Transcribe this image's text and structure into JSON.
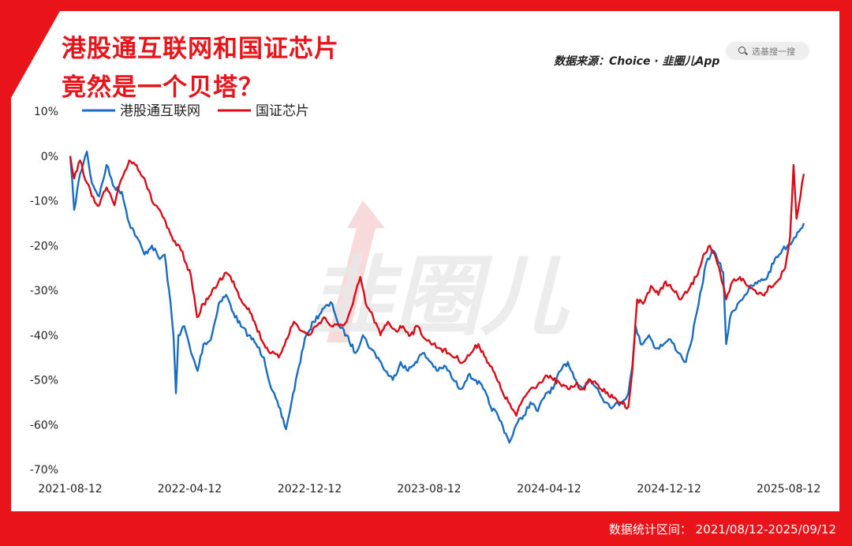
{
  "title_line1": "港股通互联网和国证芯片",
  "title_line2": "竟然是一个贝塔？",
  "source": "数据来源：Choice · 韭圈儿App",
  "search_placeholder": "选基搜一搜",
  "watermark": "韭圈儿",
  "footnote": "数据统计区间：  2021/08/12-2025/09/12",
  "colors": {
    "frame": "#e8141a",
    "series_blue": "#1a6cc1",
    "series_red": "#d80c18"
  },
  "chart_data": {
    "type": "line",
    "title": "港股通互联网和国证芯片竟然是一个贝塔？",
    "xlabel": "",
    "ylabel": "",
    "x_range": [
      "2021-08-12",
      "2025-09-12"
    ],
    "x_ticks": [
      "2021-08-12",
      "2022-04-12",
      "2022-12-12",
      "2023-08-12",
      "2024-04-12",
      "2024-12-12",
      "2025-08-12"
    ],
    "y_ticks": [
      "10%",
      "0%",
      "-10%",
      "-20%",
      "-30%",
      "-40%",
      "-50%",
      "-60%",
      "-70%"
    ],
    "ylim": [
      -70,
      10
    ],
    "grid": false,
    "legend_position": "top-left",
    "series": [
      {
        "name": "港股通互联网",
        "color": "#1a6cc1",
        "points": [
          [
            "2021-08-12",
            0
          ],
          [
            "2021-08-20",
            -12
          ],
          [
            "2021-09-01",
            -4
          ],
          [
            "2021-09-15",
            1
          ],
          [
            "2021-09-25",
            -6
          ],
          [
            "2021-10-10",
            -9
          ],
          [
            "2021-10-25",
            -2
          ],
          [
            "2021-11-10",
            -7
          ],
          [
            "2021-11-25",
            -8
          ],
          [
            "2021-12-10",
            -15
          ],
          [
            "2021-12-25",
            -18
          ],
          [
            "2022-01-10",
            -22
          ],
          [
            "2022-01-25",
            -20
          ],
          [
            "2022-02-10",
            -23
          ],
          [
            "2022-02-20",
            -22
          ],
          [
            "2022-03-01",
            -30
          ],
          [
            "2022-03-10",
            -40
          ],
          [
            "2022-03-15",
            -53
          ],
          [
            "2022-03-20",
            -40
          ],
          [
            "2022-04-01",
            -38
          ],
          [
            "2022-04-15",
            -44
          ],
          [
            "2022-04-28",
            -48
          ],
          [
            "2022-05-10",
            -42
          ],
          [
            "2022-05-25",
            -41
          ],
          [
            "2022-06-10",
            -33
          ],
          [
            "2022-06-25",
            -31
          ],
          [
            "2022-07-10",
            -35
          ],
          [
            "2022-07-25",
            -38
          ],
          [
            "2022-08-10",
            -40
          ],
          [
            "2022-08-25",
            -42
          ],
          [
            "2022-09-10",
            -45
          ],
          [
            "2022-09-25",
            -52
          ],
          [
            "2022-10-10",
            -56
          ],
          [
            "2022-10-25",
            -61
          ],
          [
            "2022-11-05",
            -55
          ],
          [
            "2022-11-20",
            -47
          ],
          [
            "2022-12-05",
            -40
          ],
          [
            "2022-12-20",
            -37
          ],
          [
            "2023-01-10",
            -34
          ],
          [
            "2023-01-27",
            -33
          ],
          [
            "2023-02-10",
            -38
          ],
          [
            "2023-02-25",
            -40
          ],
          [
            "2023-03-15",
            -44
          ],
          [
            "2023-03-30",
            -40
          ],
          [
            "2023-04-15",
            -43
          ],
          [
            "2023-04-30",
            -45
          ],
          [
            "2023-05-15",
            -48
          ],
          [
            "2023-05-30",
            -50
          ],
          [
            "2023-06-15",
            -46
          ],
          [
            "2023-06-30",
            -48
          ],
          [
            "2023-07-15",
            -46
          ],
          [
            "2023-07-30",
            -44
          ],
          [
            "2023-08-15",
            -46
          ],
          [
            "2023-08-30",
            -48
          ],
          [
            "2023-09-15",
            -47
          ],
          [
            "2023-09-30",
            -50
          ],
          [
            "2023-10-15",
            -52
          ],
          [
            "2023-10-30",
            -49
          ],
          [
            "2023-11-15",
            -50
          ],
          [
            "2023-11-30",
            -52
          ],
          [
            "2023-12-15",
            -56
          ],
          [
            "2023-12-30",
            -58
          ],
          [
            "2024-01-15",
            -62
          ],
          [
            "2024-01-22",
            -64
          ],
          [
            "2024-02-05",
            -60
          ],
          [
            "2024-02-20",
            -58
          ],
          [
            "2024-03-05",
            -55
          ],
          [
            "2024-03-20",
            -57
          ],
          [
            "2024-04-05",
            -53
          ],
          [
            "2024-04-20",
            -52
          ],
          [
            "2024-05-05",
            -48
          ],
          [
            "2024-05-20",
            -46
          ],
          [
            "2024-06-05",
            -50
          ],
          [
            "2024-06-20",
            -52
          ],
          [
            "2024-07-05",
            -50
          ],
          [
            "2024-07-20",
            -52
          ],
          [
            "2024-08-05",
            -55
          ],
          [
            "2024-08-20",
            -56
          ],
          [
            "2024-09-05",
            -55
          ],
          [
            "2024-09-20",
            -53
          ],
          [
            "2024-09-28",
            -47
          ],
          [
            "2024-10-05",
            -38
          ],
          [
            "2024-10-15",
            -42
          ],
          [
            "2024-11-01",
            -40
          ],
          [
            "2024-11-15",
            -43
          ],
          [
            "2024-12-01",
            -42
          ],
          [
            "2024-12-15",
            -41
          ],
          [
            "2025-01-01",
            -44
          ],
          [
            "2025-01-15",
            -46
          ],
          [
            "2025-01-25",
            -42
          ],
          [
            "2025-02-10",
            -33
          ],
          [
            "2025-02-25",
            -24
          ],
          [
            "2025-03-10",
            -21
          ],
          [
            "2025-03-20",
            -23
          ],
          [
            "2025-04-01",
            -26
          ],
          [
            "2025-04-07",
            -42
          ],
          [
            "2025-04-15",
            -36
          ],
          [
            "2025-04-30",
            -33
          ],
          [
            "2025-05-15",
            -31
          ],
          [
            "2025-05-30",
            -29
          ],
          [
            "2025-06-15",
            -28
          ],
          [
            "2025-06-30",
            -27
          ],
          [
            "2025-07-15",
            -23
          ],
          [
            "2025-07-30",
            -21
          ],
          [
            "2025-08-10",
            -20
          ],
          [
            "2025-08-20",
            -19
          ],
          [
            "2025-08-30",
            -17
          ],
          [
            "2025-09-12",
            -15
          ]
        ]
      },
      {
        "name": "国证芯片",
        "color": "#d80c18",
        "points": [
          [
            "2021-08-12",
            0
          ],
          [
            "2021-08-20",
            -5
          ],
          [
            "2021-09-01",
            -1
          ],
          [
            "2021-09-15",
            -6
          ],
          [
            "2021-09-25",
            -9
          ],
          [
            "2021-10-10",
            -11
          ],
          [
            "2021-10-25",
            -7
          ],
          [
            "2021-11-10",
            -11
          ],
          [
            "2021-11-25",
            -5
          ],
          [
            "2021-12-10",
            -1
          ],
          [
            "2021-12-25",
            -2
          ],
          [
            "2022-01-10",
            -5
          ],
          [
            "2022-01-25",
            -10
          ],
          [
            "2022-02-10",
            -12
          ],
          [
            "2022-02-25",
            -16
          ],
          [
            "2022-03-10",
            -19
          ],
          [
            "2022-03-25",
            -21
          ],
          [
            "2022-04-05",
            -24
          ],
          [
            "2022-04-15",
            -27
          ],
          [
            "2022-04-27",
            -36
          ],
          [
            "2022-05-10",
            -33
          ],
          [
            "2022-05-25",
            -31
          ],
          [
            "2022-06-10",
            -28
          ],
          [
            "2022-06-25",
            -26
          ],
          [
            "2022-07-10",
            -28
          ],
          [
            "2022-07-25",
            -32
          ],
          [
            "2022-08-10",
            -34
          ],
          [
            "2022-08-25",
            -38
          ],
          [
            "2022-09-10",
            -42
          ],
          [
            "2022-09-25",
            -44
          ],
          [
            "2022-10-10",
            -45
          ],
          [
            "2022-10-25",
            -41
          ],
          [
            "2022-11-10",
            -37
          ],
          [
            "2022-11-25",
            -39
          ],
          [
            "2022-12-10",
            -40
          ],
          [
            "2022-12-25",
            -38
          ],
          [
            "2023-01-10",
            -36
          ],
          [
            "2023-01-25",
            -38
          ],
          [
            "2023-02-10",
            -38
          ],
          [
            "2023-02-25",
            -37
          ],
          [
            "2023-03-10",
            -33
          ],
          [
            "2023-03-25",
            -27
          ],
          [
            "2023-04-05",
            -33
          ],
          [
            "2023-04-20",
            -36
          ],
          [
            "2023-05-05",
            -40
          ],
          [
            "2023-05-20",
            -37
          ],
          [
            "2023-06-05",
            -39
          ],
          [
            "2023-06-20",
            -38
          ],
          [
            "2023-07-05",
            -40
          ],
          [
            "2023-07-20",
            -38
          ],
          [
            "2023-08-05",
            -41
          ],
          [
            "2023-08-20",
            -42
          ],
          [
            "2023-09-05",
            -43
          ],
          [
            "2023-09-20",
            -44
          ],
          [
            "2023-10-05",
            -45
          ],
          [
            "2023-10-20",
            -46
          ],
          [
            "2023-11-05",
            -44
          ],
          [
            "2023-11-20",
            -42
          ],
          [
            "2023-12-05",
            -45
          ],
          [
            "2023-12-20",
            -48
          ],
          [
            "2024-01-05",
            -52
          ],
          [
            "2024-01-20",
            -55
          ],
          [
            "2024-02-05",
            -58
          ],
          [
            "2024-02-20",
            -54
          ],
          [
            "2024-03-05",
            -52
          ],
          [
            "2024-03-20",
            -51
          ],
          [
            "2024-04-05",
            -49
          ],
          [
            "2024-04-20",
            -50
          ],
          [
            "2024-05-05",
            -51
          ],
          [
            "2024-05-20",
            -52
          ],
          [
            "2024-06-05",
            -51
          ],
          [
            "2024-06-20",
            -52
          ],
          [
            "2024-07-05",
            -50
          ],
          [
            "2024-07-20",
            -51
          ],
          [
            "2024-08-05",
            -53
          ],
          [
            "2024-08-20",
            -54
          ],
          [
            "2024-09-05",
            -55
          ],
          [
            "2024-09-20",
            -56
          ],
          [
            "2024-09-28",
            -48
          ],
          [
            "2024-10-08",
            -32
          ],
          [
            "2024-10-20",
            -33
          ],
          [
            "2024-11-05",
            -29
          ],
          [
            "2024-11-20",
            -31
          ],
          [
            "2024-12-05",
            -28
          ],
          [
            "2024-12-20",
            -30
          ],
          [
            "2025-01-05",
            -32
          ],
          [
            "2025-01-20",
            -30
          ],
          [
            "2025-02-05",
            -27
          ],
          [
            "2025-02-20",
            -22
          ],
          [
            "2025-03-05",
            -20
          ],
          [
            "2025-03-20",
            -24
          ],
          [
            "2025-04-07",
            -32
          ],
          [
            "2025-04-20",
            -28
          ],
          [
            "2025-05-05",
            -27
          ],
          [
            "2025-05-20",
            -29
          ],
          [
            "2025-06-05",
            -30
          ],
          [
            "2025-06-20",
            -31
          ],
          [
            "2025-07-05",
            -29
          ],
          [
            "2025-07-20",
            -28
          ],
          [
            "2025-08-05",
            -25
          ],
          [
            "2025-08-15",
            -18
          ],
          [
            "2025-08-22",
            -2
          ],
          [
            "2025-08-28",
            -14
          ],
          [
            "2025-09-05",
            -9
          ],
          [
            "2025-09-12",
            -4
          ]
        ]
      }
    ]
  }
}
